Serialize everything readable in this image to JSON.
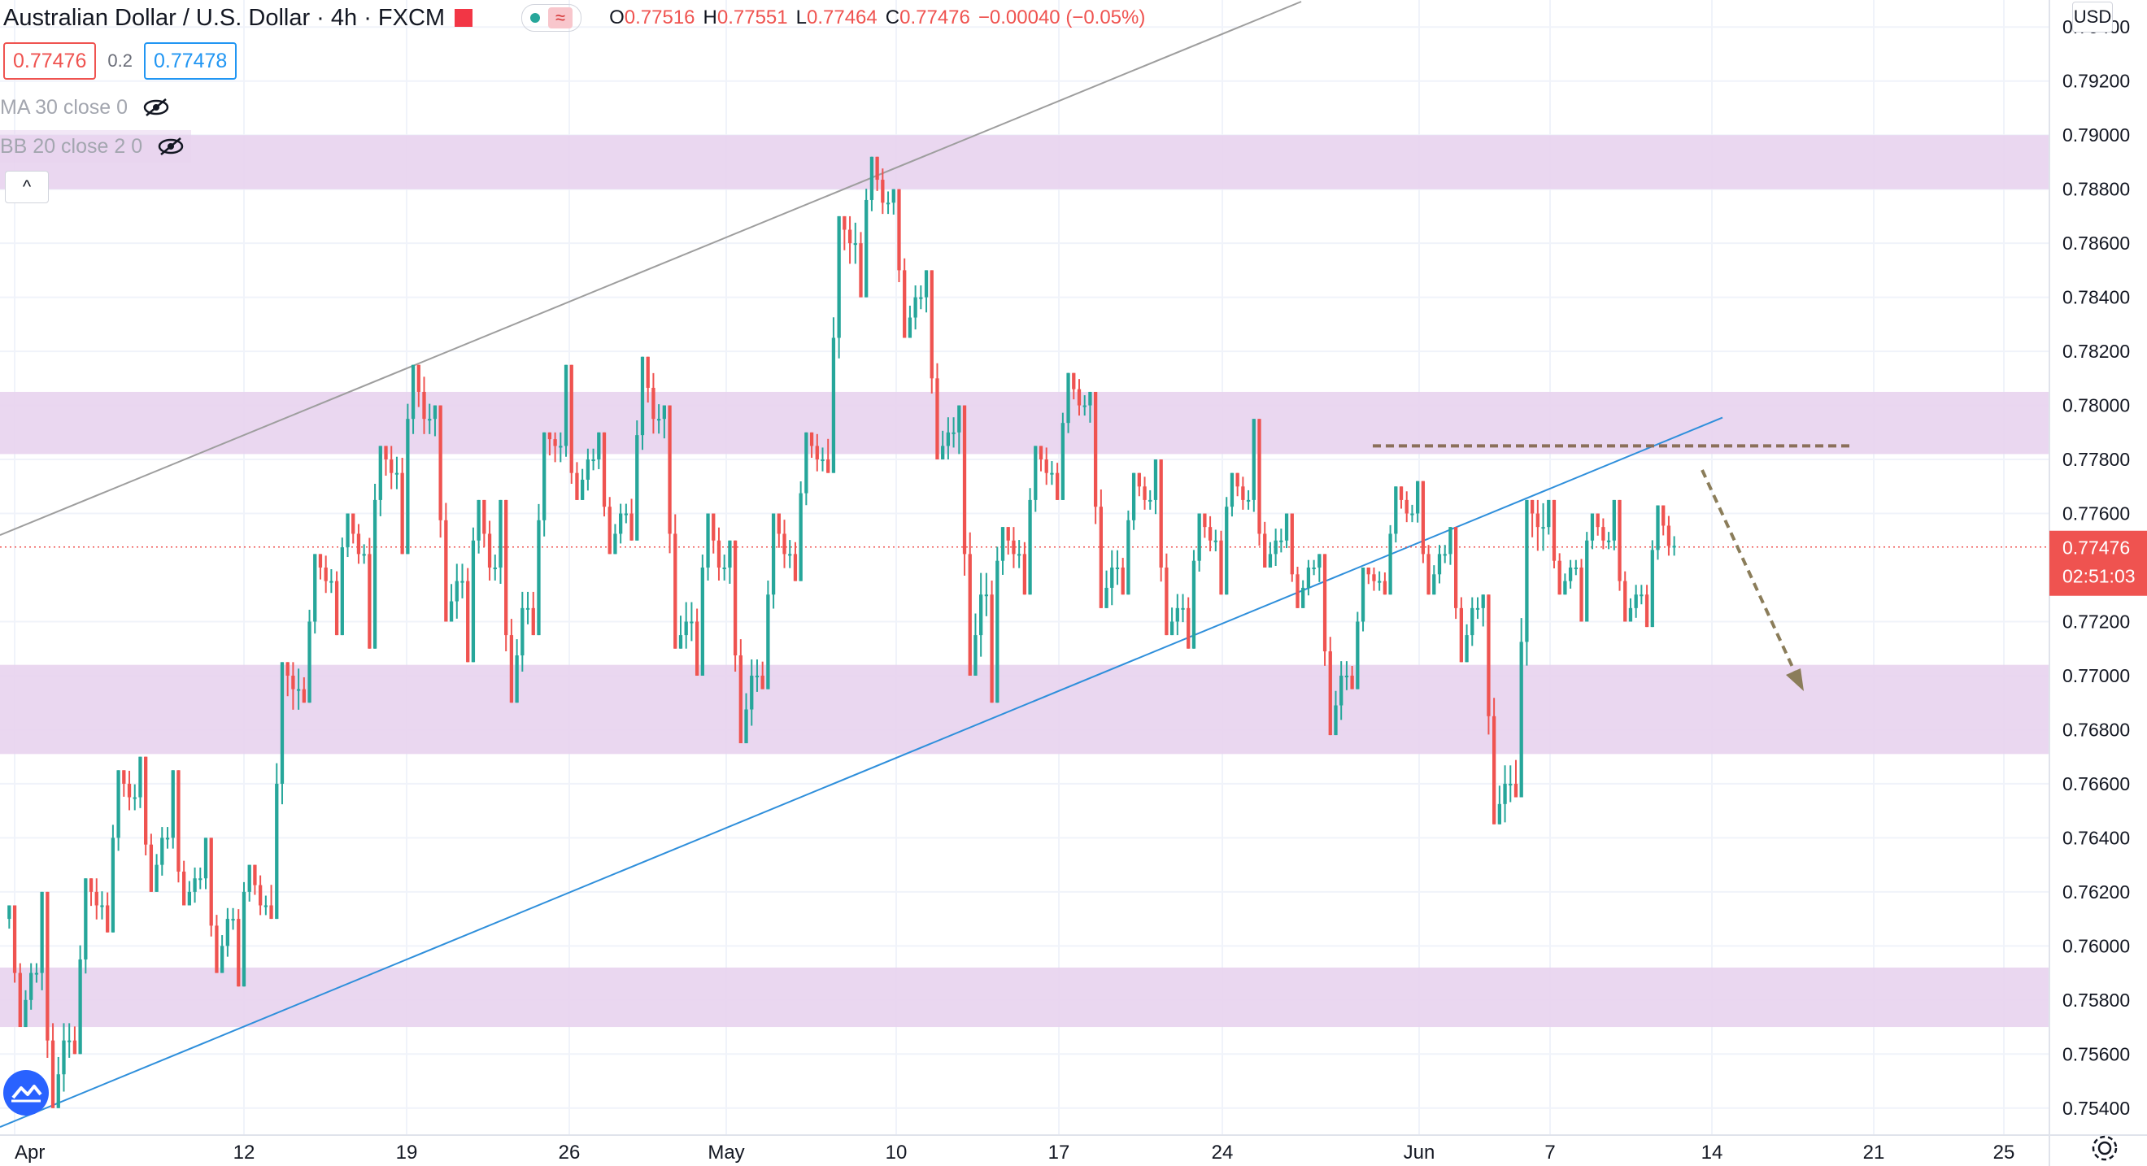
{
  "header": {
    "title": "Australian Dollar / U.S. Dollar · 4h · FXCM",
    "ohlc": {
      "o_label": "O",
      "o": "0.77516",
      "h_label": "H",
      "h": "0.77551",
      "l_label": "L",
      "l": "0.77464",
      "c_label": "C",
      "c": "0.77476",
      "change": "−0.00040 (−0.05%)"
    },
    "bid": "0.77476",
    "spread": "0.2",
    "ask": "0.77478",
    "currency_button": "USD",
    "collapse_icon": "^"
  },
  "indicators": [
    {
      "label": "MA 30 close 0",
      "icon": "eye-crossed-icon"
    },
    {
      "label": "BB 20 close 2 0",
      "icon": "eye-crossed-icon"
    }
  ],
  "colors": {
    "up": "#26a69a",
    "down": "#ef5350",
    "zone": "#e8d3ee",
    "trendline_blue": "#2f8fdb",
    "trendline_gray": "#9e9e9e",
    "resistance_dash": "#8b6f5a",
    "arrow": "#8b7d5a"
  },
  "price_axis": {
    "labels": [
      "0.79400",
      "0.79200",
      "0.79000",
      "0.78800",
      "0.78600",
      "0.78400",
      "0.78200",
      "0.78000",
      "0.77800",
      "0.77600",
      "0.77200",
      "0.77000",
      "0.76800",
      "0.76600",
      "0.76400",
      "0.76200",
      "0.76000",
      "0.75800",
      "0.75600",
      "0.75400"
    ],
    "current_price": "0.77476",
    "countdown": "02:51:03"
  },
  "time_axis": {
    "labels": [
      "Apr",
      "12",
      "19",
      "26",
      "May",
      "10",
      "17",
      "24",
      "Jun",
      "7",
      "14",
      "21",
      "25"
    ]
  },
  "chart_data": {
    "type": "candlestick",
    "symbol": "Australian Dollar / U.S. Dollar",
    "interval": "4h",
    "ylim": [
      0.753,
      0.795
    ],
    "zones": [
      [
        0.788,
        0.79
      ],
      [
        0.7782,
        0.7805
      ],
      [
        0.7671,
        0.7704
      ],
      [
        0.757,
        0.7592
      ]
    ],
    "resistance_dashed": 0.7785,
    "current": 0.77476,
    "candles": [
      {
        "t": "Apr 2",
        "o": 0.761,
        "h": 0.7615,
        "l": 0.757,
        "c": 0.759
      },
      {
        "t": "Apr 5",
        "o": 0.759,
        "h": 0.762,
        "l": 0.754,
        "c": 0.7565
      },
      {
        "t": "Apr 6",
        "o": 0.7565,
        "h": 0.7625,
        "l": 0.756,
        "c": 0.7615
      },
      {
        "t": "Apr 7",
        "o": 0.7615,
        "h": 0.7665,
        "l": 0.7605,
        "c": 0.7655
      },
      {
        "t": "Apr 8",
        "o": 0.7655,
        "h": 0.767,
        "l": 0.762,
        "c": 0.764
      },
      {
        "t": "Apr 9",
        "o": 0.764,
        "h": 0.7665,
        "l": 0.7615,
        "c": 0.7625
      },
      {
        "t": "Apr 12",
        "o": 0.7625,
        "h": 0.764,
        "l": 0.759,
        "c": 0.761
      },
      {
        "t": "Apr 13",
        "o": 0.761,
        "h": 0.763,
        "l": 0.7585,
        "c": 0.7615
      },
      {
        "t": "Apr 14",
        "o": 0.7615,
        "h": 0.7705,
        "l": 0.761,
        "c": 0.7695
      },
      {
        "t": "Apr 15",
        "o": 0.7695,
        "h": 0.7745,
        "l": 0.769,
        "c": 0.7735
      },
      {
        "t": "Apr 16",
        "o": 0.7735,
        "h": 0.776,
        "l": 0.7715,
        "c": 0.7745
      },
      {
        "t": "Apr 19",
        "o": 0.7745,
        "h": 0.7785,
        "l": 0.771,
        "c": 0.7775
      },
      {
        "t": "Apr 20",
        "o": 0.7775,
        "h": 0.7815,
        "l": 0.7745,
        "c": 0.7795
      },
      {
        "t": "Apr 21",
        "o": 0.7795,
        "h": 0.78,
        "l": 0.772,
        "c": 0.7735
      },
      {
        "t": "Apr 22",
        "o": 0.7735,
        "h": 0.7765,
        "l": 0.7705,
        "c": 0.774
      },
      {
        "t": "Apr 23",
        "o": 0.774,
        "h": 0.7765,
        "l": 0.769,
        "c": 0.7725
      },
      {
        "t": "Apr 26",
        "o": 0.7725,
        "h": 0.779,
        "l": 0.7715,
        "c": 0.7785
      },
      {
        "t": "Apr 27",
        "o": 0.7785,
        "h": 0.7815,
        "l": 0.7765,
        "c": 0.778
      },
      {
        "t": "Apr 28",
        "o": 0.778,
        "h": 0.779,
        "l": 0.7745,
        "c": 0.776
      },
      {
        "t": "Apr 29",
        "o": 0.776,
        "h": 0.7818,
        "l": 0.775,
        "c": 0.7795
      },
      {
        "t": "Apr 30",
        "o": 0.7795,
        "h": 0.78,
        "l": 0.771,
        "c": 0.772
      },
      {
        "t": "May 3",
        "o": 0.772,
        "h": 0.776,
        "l": 0.77,
        "c": 0.774
      },
      {
        "t": "May 4",
        "o": 0.774,
        "h": 0.775,
        "l": 0.7675,
        "c": 0.77
      },
      {
        "t": "May 5",
        "o": 0.77,
        "h": 0.776,
        "l": 0.7695,
        "c": 0.7745
      },
      {
        "t": "May 6",
        "o": 0.7745,
        "h": 0.779,
        "l": 0.7735,
        "c": 0.778
      },
      {
        "t": "May 7",
        "o": 0.778,
        "h": 0.787,
        "l": 0.7775,
        "c": 0.786
      },
      {
        "t": "May 10",
        "o": 0.786,
        "h": 0.7892,
        "l": 0.784,
        "c": 0.7875
      },
      {
        "t": "May 11",
        "o": 0.7875,
        "h": 0.788,
        "l": 0.7825,
        "c": 0.784
      },
      {
        "t": "May 12",
        "o": 0.784,
        "h": 0.785,
        "l": 0.778,
        "c": 0.779
      },
      {
        "t": "May 13",
        "o": 0.779,
        "h": 0.78,
        "l": 0.77,
        "c": 0.773
      },
      {
        "t": "May 14",
        "o": 0.773,
        "h": 0.7755,
        "l": 0.769,
        "c": 0.7745
      },
      {
        "t": "May 17",
        "o": 0.7745,
        "h": 0.7785,
        "l": 0.773,
        "c": 0.7775
      },
      {
        "t": "May 18",
        "o": 0.7775,
        "h": 0.7812,
        "l": 0.7765,
        "c": 0.78
      },
      {
        "t": "May 19",
        "o": 0.78,
        "h": 0.7805,
        "l": 0.7725,
        "c": 0.774
      },
      {
        "t": "May 20",
        "o": 0.774,
        "h": 0.7775,
        "l": 0.773,
        "c": 0.7765
      },
      {
        "t": "May 21",
        "o": 0.7765,
        "h": 0.778,
        "l": 0.7715,
        "c": 0.7725
      },
      {
        "t": "May 24",
        "o": 0.7725,
        "h": 0.776,
        "l": 0.771,
        "c": 0.775
      },
      {
        "t": "May 25",
        "o": 0.775,
        "h": 0.7775,
        "l": 0.773,
        "c": 0.7765
      },
      {
        "t": "May 26",
        "o": 0.7765,
        "h": 0.7795,
        "l": 0.774,
        "c": 0.775
      },
      {
        "t": "May 27",
        "o": 0.775,
        "h": 0.776,
        "l": 0.7725,
        "c": 0.774
      },
      {
        "t": "May 28",
        "o": 0.774,
        "h": 0.7745,
        "l": 0.7678,
        "c": 0.77
      },
      {
        "t": "May 31",
        "o": 0.77,
        "h": 0.774,
        "l": 0.7695,
        "c": 0.7735
      },
      {
        "t": "Jun 1",
        "o": 0.7735,
        "h": 0.777,
        "l": 0.773,
        "c": 0.776
      },
      {
        "t": "Jun 2",
        "o": 0.776,
        "h": 0.7772,
        "l": 0.773,
        "c": 0.7745
      },
      {
        "t": "Jun 3",
        "o": 0.7745,
        "h": 0.7755,
        "l": 0.7705,
        "c": 0.7725
      },
      {
        "t": "Jun 4",
        "o": 0.7725,
        "h": 0.773,
        "l": 0.7645,
        "c": 0.766
      },
      {
        "t": "Jun 7",
        "o": 0.766,
        "h": 0.7765,
        "l": 0.7655,
        "c": 0.7755
      },
      {
        "t": "Jun 8",
        "o": 0.7755,
        "h": 0.7765,
        "l": 0.773,
        "c": 0.774
      },
      {
        "t": "Jun 9",
        "o": 0.774,
        "h": 0.776,
        "l": 0.772,
        "c": 0.775
      },
      {
        "t": "Jun 10",
        "o": 0.775,
        "h": 0.7765,
        "l": 0.772,
        "c": 0.773
      },
      {
        "t": "Jun 11",
        "o": 0.773,
        "h": 0.7763,
        "l": 0.7718,
        "c": 0.7748
      }
    ]
  }
}
